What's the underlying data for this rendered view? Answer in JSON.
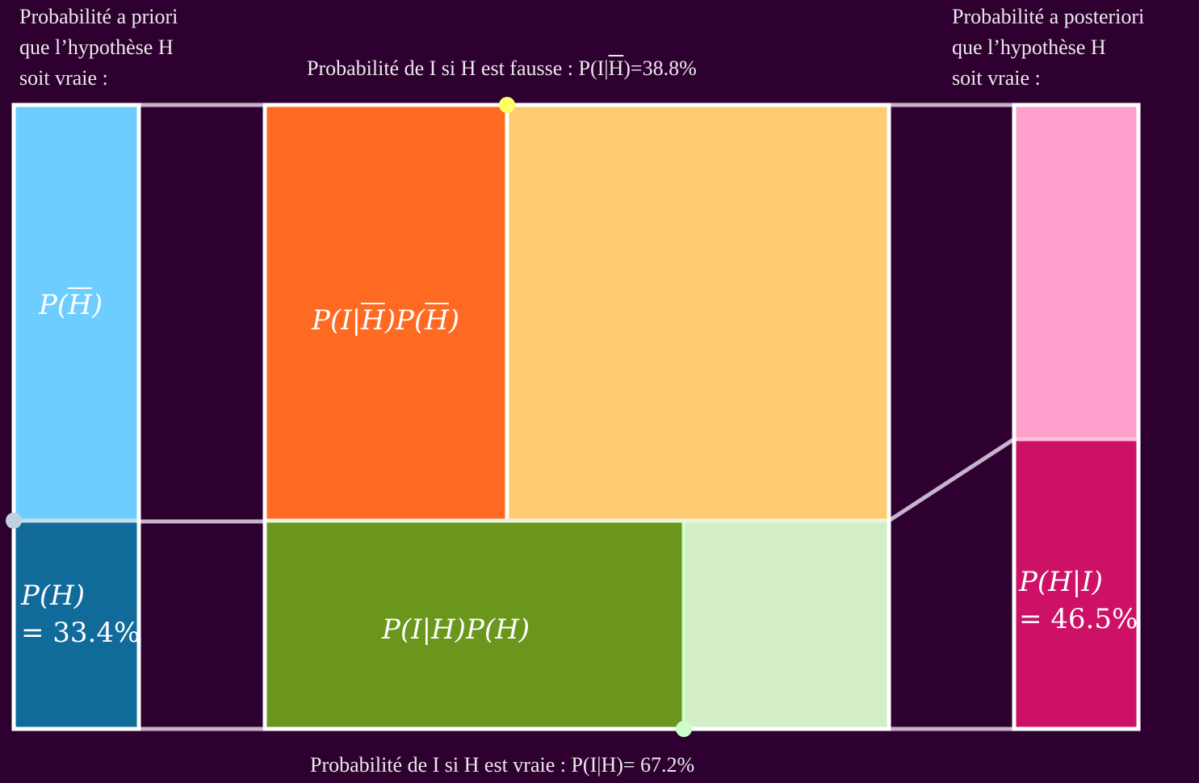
{
  "prior_caption": [
    "Probabilité a priori",
    "que l’hypothèse H",
    "soit vraie :"
  ],
  "posterior_caption": [
    "Probabilité a posteriori",
    "que l’hypothèse H",
    "soit vraie :"
  ],
  "top_caption": {
    "prefix": "Probabilité de I si H est fausse : P(I|",
    "overlined": "H",
    "suffix": ")=38.8%"
  },
  "bottom_caption": "Probabilité de I si H est vraie : P(I|H)= 67.2%",
  "labels": {
    "p_not_h": {
      "open": "P(",
      "var": "H",
      "close": ")"
    },
    "p_h": "P(H)",
    "p_h_value": "= 33.4%",
    "joint_not_h": {
      "a": "P(I|",
      "b": "H",
      "c": ")P(",
      "d": "H",
      "e": ")"
    },
    "joint_h": "P(I|H)P(H)",
    "p_h_given_i": "P(H|I)",
    "p_h_given_i_value": "= 46.5%"
  },
  "values": {
    "p_h": 0.334,
    "p_i_given_not_h": 0.388,
    "p_i_given_h": 0.672,
    "p_h_given_i": 0.465
  },
  "colors": {
    "background": "#2e0030",
    "prior_not_h": "#6dcdff",
    "prior_h": "#106a9a",
    "joint_not_h_i": "#ff6a22",
    "joint_not_h_rest": "#ffcb72",
    "joint_h_i": "#6a961c",
    "joint_h_rest": "#d3edc7",
    "posterior_not_h": "#ffa0cc",
    "posterior_h": "#cc1166",
    "frame": "#ffffff",
    "connector": "#c9b2cb",
    "handle_prior": "#c0d0e0",
    "handle_top": "#ffff66",
    "handle_bottom": "#ccffcc"
  }
}
